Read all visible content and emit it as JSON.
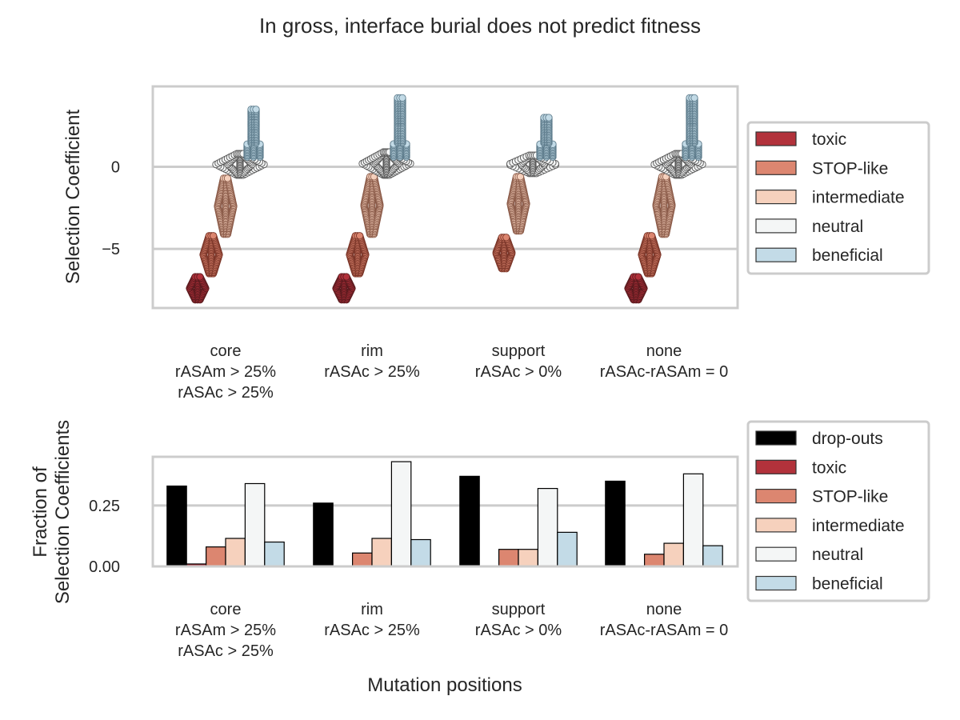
{
  "suptitle": "In gross, interface burial does not predict fitness",
  "palette": {
    "drop-outs": "#000000",
    "toxic": "#b2323b",
    "STOP-like": "#dc8670",
    "intermediate": "#f6d1bd",
    "neutral": "#f4f6f6",
    "beneficial": "#c3dbe7"
  },
  "chart_data": [
    {
      "type": "scatter",
      "subtype": "swarm",
      "ylabel": "Selection Coefficient",
      "xlabel": "",
      "ylim": [
        -8.6,
        4.9
      ],
      "yticks": [
        0,
        -5
      ],
      "ytick_labels": [
        "0",
        "−5"
      ],
      "grid": "horizontal",
      "legend_position": "right",
      "categories": [
        "core\nrASAm > 25%\nrASAc > 25%",
        "rim\nrASAc > 25%",
        "support\nrASAc > 0%",
        "none\nrASAc-rASAm = 0"
      ],
      "legend": [
        "toxic",
        "STOP-like",
        "intermediate",
        "neutral",
        "beneficial"
      ],
      "series": [
        {
          "name": "toxic",
          "ranges": [
            [
              -8.1,
              -6.7
            ],
            [
              -8.1,
              -6.7
            ],
            null,
            [
              -8.1,
              -6.7
            ]
          ]
        },
        {
          "name": "STOP-like",
          "ranges": [
            [
              -6.5,
              -4.2
            ],
            [
              -6.5,
              -4.2
            ],
            [
              -6.2,
              -4.3
            ],
            [
              -6.5,
              -4.2
            ]
          ]
        },
        {
          "name": "intermediate",
          "ranges": [
            [
              -4.1,
              -0.7
            ],
            [
              -4.1,
              -0.6
            ],
            [
              -3.9,
              -0.6
            ],
            [
              -4.1,
              -0.6
            ]
          ]
        },
        {
          "name": "neutral",
          "ranges": [
            [
              -0.5,
              0.8
            ],
            [
              -0.5,
              0.9
            ],
            [
              -0.4,
              0.7
            ],
            [
              -0.5,
              0.8
            ]
          ]
        },
        {
          "name": "beneficial",
          "ranges": [
            [
              0.6,
              3.5
            ],
            [
              0.6,
              4.2
            ],
            [
              0.6,
              3.0
            ],
            [
              0.6,
              4.2
            ]
          ]
        }
      ]
    },
    {
      "type": "bar",
      "ylabel": "Fraction of\nSelection Coefficients",
      "xlabel": "Mutation positions",
      "ylim": [
        0,
        0.45
      ],
      "yticks": [
        0,
        0.25
      ],
      "ytick_labels": [
        "0.00",
        "0.25"
      ],
      "grid": "horizontal",
      "legend_position": "right",
      "categories": [
        "core\nrASAm > 25%\nrASAc > 25%",
        "rim\nrASAc > 25%",
        "support\nrASAc > 0%",
        "none\nrASAc-rASAm = 0"
      ],
      "series": [
        {
          "name": "drop-outs",
          "values": [
            0.33,
            0.26,
            0.37,
            0.35
          ]
        },
        {
          "name": "toxic",
          "values": [
            0.01,
            0.0,
            0.0,
            0.0
          ]
        },
        {
          "name": "STOP-like",
          "values": [
            0.08,
            0.055,
            0.07,
            0.05
          ]
        },
        {
          "name": "intermediate",
          "values": [
            0.115,
            0.115,
            0.07,
            0.095
          ]
        },
        {
          "name": "neutral",
          "values": [
            0.34,
            0.43,
            0.32,
            0.38
          ]
        },
        {
          "name": "beneficial",
          "values": [
            0.1,
            0.11,
            0.14,
            0.085
          ]
        }
      ]
    }
  ]
}
